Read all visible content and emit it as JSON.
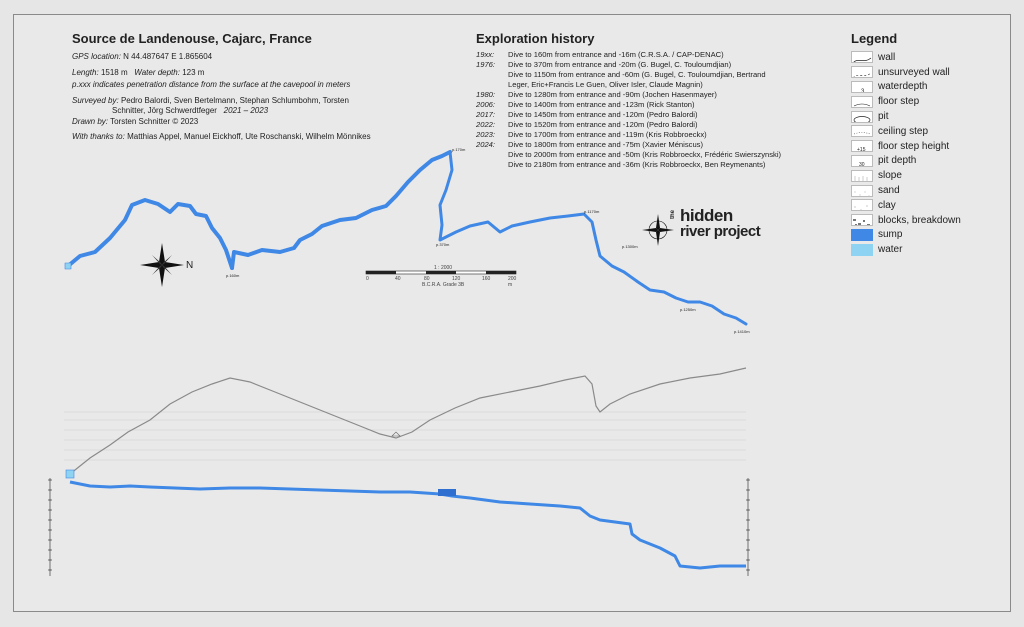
{
  "header": {
    "title": "Source de Landenouse, Cajarc, France",
    "gps_label": "GPS location:",
    "gps_value": "N 44.487647 E 1.865604",
    "length_label": "Length:",
    "length_value": "1518 m",
    "depth_label": "Water depth:",
    "depth_value": "123 m",
    "note": "p.xxx indicates penetration distance from the surface at the cavepool in meters",
    "surveyed_label": "Surveyed by:",
    "surveyed_line1": "Pedro Balordi,   Sven Bertelmann,   Stephan Schlumbohm,   Torsten",
    "surveyed_line2": "Schnitter,  Jörg Schwerdtfeger",
    "surveyed_years": "2021 – 2023",
    "drawn_label": "Drawn by:",
    "drawn_value": "Torsten Schnitter    © 2023",
    "thanks_label": "With thanks to:",
    "thanks_value": "Matthias Appel, Manuel Eickhoff, Ute Roschanski, Wilhelm Mönnikes"
  },
  "history": {
    "title": "Exploration history",
    "entries": [
      {
        "year": "19xx:",
        "text": "Dive to 160m from entrance and -16m (C.R.S.A. / CAP-DENAC)"
      },
      {
        "year": "1976:",
        "text": "Dive to 370m from entrance and -20m (G. Bugel, C. Touloumdjian)"
      },
      {
        "year": "",
        "text": "Dive to 1150m from entrance and -60m (G. Bugel, C. Touloumdjian, Bertrand"
      },
      {
        "year": "",
        "text": "Leger, Eric+Francis Le Guen, Oliver Isler, Claude Magnin)"
      },
      {
        "year": "1980:",
        "text": "Dive to 1280m from entrance and -90m (Jochen Hasenmayer)"
      },
      {
        "year": "2006:",
        "text": "Dive to 1400m from entrance and -123m (Rick Stanton)"
      },
      {
        "year": "2017:",
        "text": "Dive to 1450m from entrance and -120m (Pedro Balordi)"
      },
      {
        "year": "2022:",
        "text": "Dive to 1520m from entrance and -120m (Pedro Balordi)"
      },
      {
        "year": "2023:",
        "text": "Dive to 1700m from entrance and -119m (Kris Robbroeckx)"
      },
      {
        "year": "2024:",
        "text": "Dive to 1800m from entrance and -75m (Xavier Méniscus)"
      },
      {
        "year": "",
        "text": "Dive to 2000m from entrance and -50m (Kris Robbroeckx, Frédéric Swierszynski)"
      },
      {
        "year": "",
        "text": "Dive to 2180m from entrance and -36m (Kris Robbroeckx, Ben Reymenants)"
      }
    ]
  },
  "legend": {
    "title": "Legend",
    "items": [
      {
        "label": "wall",
        "icon": "wall-line"
      },
      {
        "label": "unsurveyed wall",
        "icon": "dashed-line"
      },
      {
        "label": "waterdepth",
        "icon": "depth-mark"
      },
      {
        "label": "floor step",
        "icon": "step-line"
      },
      {
        "label": "pit",
        "icon": "ellipse"
      },
      {
        "label": "ceiling step",
        "icon": "dotted-line"
      },
      {
        "label": "floor step height",
        "icon": "step-height"
      },
      {
        "label": "pit depth",
        "icon": "pit-depth"
      },
      {
        "label": "slope",
        "icon": "slope-lines"
      },
      {
        "label": "sand",
        "icon": "sand-dots"
      },
      {
        "label": "clay",
        "icon": "clay-pattern"
      },
      {
        "label": "blocks, breakdown",
        "icon": "blocks-pattern"
      },
      {
        "label": "sump",
        "icon": "sump-fill",
        "color": "#3f88e6"
      },
      {
        "label": "water",
        "icon": "water-fill",
        "color": "#8fd3f2"
      }
    ]
  },
  "compass": {
    "north_label": "N"
  },
  "scale": {
    "ratio": "1 : 2000",
    "org": "B.C.R.A. Grade 3B",
    "ticks": [
      "0",
      "40",
      "80",
      "120",
      "160",
      "200 m"
    ]
  },
  "logo": {
    "line1": "hidden",
    "line2": "river project",
    "prefix": "the"
  },
  "plan_labels": [
    "p.170m",
    "p.160m",
    "p.1170m",
    "p.1300m",
    "p.1250m",
    "p.1410m",
    "p.1500m",
    "p.370m"
  ],
  "colors": {
    "sump": "#3f88e6",
    "water": "#8fd3f2",
    "surface": "#8a8a8a",
    "background": "#e9e9e9"
  }
}
